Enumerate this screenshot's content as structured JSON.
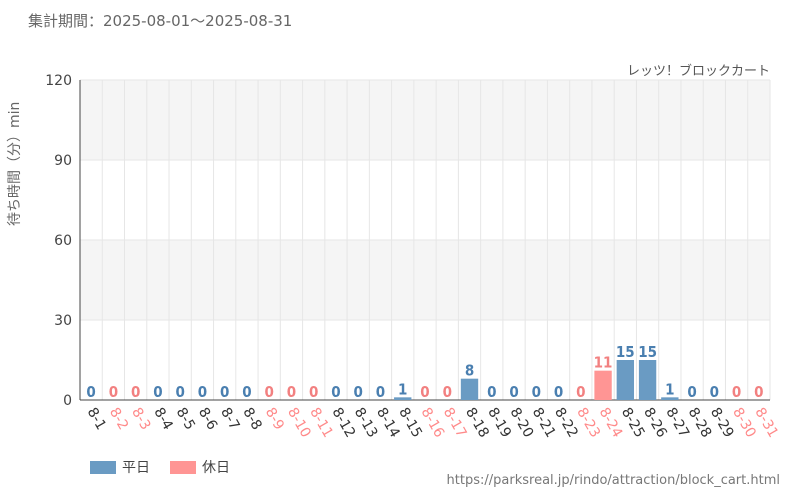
{
  "header": {
    "period": "集計期間：2025-08-01～2025-08-31",
    "attraction": "レッツ！ブロックカート"
  },
  "legend": {
    "weekday_label": "平日",
    "holiday_label": "休日"
  },
  "colors": {
    "weekday": "#6a9bc3",
    "holiday": "#ff9594",
    "weekday_label": "#4a7fb0",
    "holiday_label": "#f28080"
  },
  "source_url": "https://parksreal.jp/rindo/attraction/block_cart.html",
  "chart_data": {
    "type": "bar",
    "ylabel": "待ち時間（分）min",
    "ylim": [
      0,
      120
    ],
    "yticks": [
      0,
      30,
      60,
      90,
      120
    ],
    "grid": true,
    "legend_position": "bottom-left",
    "categories": [
      "8-1",
      "8-2",
      "8-3",
      "8-4",
      "8-5",
      "8-6",
      "8-7",
      "8-8",
      "8-9",
      "8-10",
      "8-11",
      "8-12",
      "8-13",
      "8-14",
      "8-15",
      "8-16",
      "8-17",
      "8-18",
      "8-19",
      "8-20",
      "8-21",
      "8-22",
      "8-23",
      "8-24",
      "8-25",
      "8-26",
      "8-27",
      "8-28",
      "8-29",
      "8-30",
      "8-31"
    ],
    "values": [
      0,
      0,
      0,
      0,
      0,
      0,
      0,
      0,
      0,
      0,
      0,
      0,
      0,
      0,
      1,
      0,
      0,
      8,
      0,
      0,
      0,
      0,
      0,
      11,
      15,
      15,
      1,
      0,
      0,
      0,
      0
    ],
    "day_type": [
      "weekday",
      "holiday",
      "holiday",
      "weekday",
      "weekday",
      "weekday",
      "weekday",
      "weekday",
      "holiday",
      "holiday",
      "holiday",
      "weekday",
      "weekday",
      "weekday",
      "weekday",
      "holiday",
      "holiday",
      "weekday",
      "weekday",
      "weekday",
      "weekday",
      "weekday",
      "holiday",
      "holiday",
      "weekday",
      "weekday",
      "weekday",
      "weekday",
      "weekday",
      "holiday",
      "holiday"
    ]
  }
}
